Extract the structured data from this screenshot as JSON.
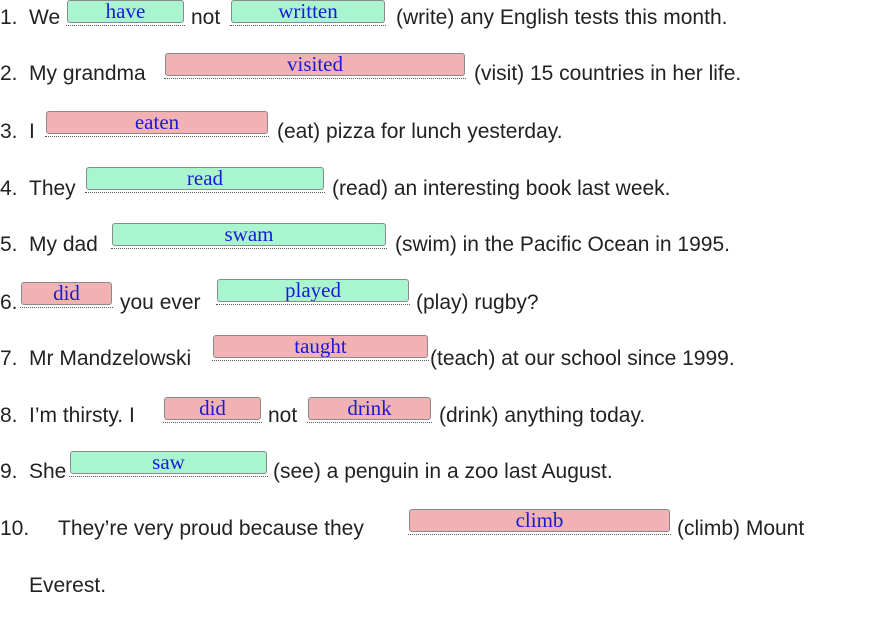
{
  "colors": {
    "correct_fill": "#a9f5cf",
    "wrong_fill": "#f2b2b3",
    "answer_text": "#1a1ad6"
  },
  "items": [
    {
      "n": "1.",
      "t1": "We",
      "a1": {
        "value": "have",
        "status": "correct"
      },
      "t2": "not",
      "a2": {
        "value": "written",
        "status": "correct"
      },
      "t3": "(write) any English tests this month."
    },
    {
      "n": "2.",
      "t1": "My grandma",
      "a1": {
        "value": "visited",
        "status": "wrong"
      },
      "t2": "(visit) 15 countries in her life."
    },
    {
      "n": "3.",
      "t1": "I",
      "a1": {
        "value": "eaten",
        "status": "wrong"
      },
      "t2": "(eat) pizza for lunch yesterday."
    },
    {
      "n": "4.",
      "t1": "They",
      "a1": {
        "value": "read",
        "status": "correct"
      },
      "t2": "(read) an interesting book last week."
    },
    {
      "n": "5.",
      "t1": "My dad",
      "a1": {
        "value": "swam",
        "status": "correct"
      },
      "t2": "(swim) in the Pacific Ocean in 1995."
    },
    {
      "n": "6.",
      "a1": {
        "value": "did",
        "status": "wrong"
      },
      "t1": "you ever",
      "a2": {
        "value": "played",
        "status": "correct"
      },
      "t2": "(play) rugby?"
    },
    {
      "n": "7.",
      "t1": "Mr Mandzelowski",
      "a1": {
        "value": "taught",
        "status": "wrong"
      },
      "t2": "(teach) at our school since 1999."
    },
    {
      "n": "8.",
      "t1": "I’m thirsty. I",
      "a1": {
        "value": "did",
        "status": "wrong"
      },
      "t2": "not",
      "a2": {
        "value": "drink",
        "status": "wrong"
      },
      "t3": "(drink) anything today."
    },
    {
      "n": "9.",
      "t1": "She",
      "a1": {
        "value": "saw",
        "status": "correct"
      },
      "t2": "(see) a penguin in a zoo last August."
    },
    {
      "n": "10.",
      "t1": "They’re very proud because they",
      "a1": {
        "value": "climb",
        "status": "wrong"
      },
      "t2": "(climb) Mount",
      "t3": "Everest."
    }
  ]
}
